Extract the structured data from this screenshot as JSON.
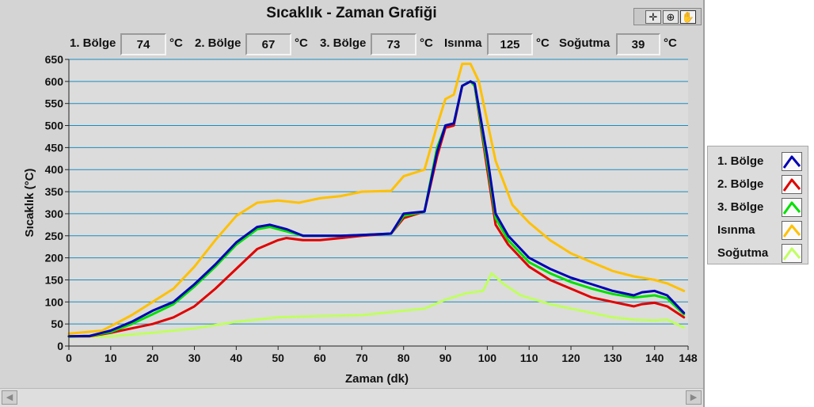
{
  "chart_data": {
    "type": "line",
    "title": "Sıcaklık - Zaman Grafiği",
    "xlabel": "Zaman (dk)",
    "ylabel": "Sıcaklık (°C)",
    "xlim": [
      0,
      148
    ],
    "ylim": [
      0,
      650
    ],
    "x_ticks": [
      0,
      10,
      20,
      30,
      40,
      50,
      60,
      70,
      80,
      90,
      100,
      110,
      120,
      130,
      140,
      148
    ],
    "y_ticks": [
      0,
      50,
      100,
      150,
      200,
      250,
      300,
      350,
      400,
      450,
      500,
      550,
      600,
      650
    ],
    "grid": "horizontal",
    "legend_position": "right",
    "series": [
      {
        "name": "1. Bölge",
        "color": "#0000b4",
        "points": [
          [
            0,
            22
          ],
          [
            5,
            23
          ],
          [
            10,
            35
          ],
          [
            15,
            55
          ],
          [
            20,
            80
          ],
          [
            25,
            100
          ],
          [
            30,
            140
          ],
          [
            35,
            185
          ],
          [
            40,
            235
          ],
          [
            45,
            270
          ],
          [
            48,
            275
          ],
          [
            52,
            265
          ],
          [
            56,
            250
          ],
          [
            60,
            250
          ],
          [
            65,
            250
          ],
          [
            70,
            252
          ],
          [
            77,
            255
          ],
          [
            80,
            300
          ],
          [
            85,
            305
          ],
          [
            88,
            440
          ],
          [
            90,
            500
          ],
          [
            92,
            505
          ],
          [
            94,
            590
          ],
          [
            96,
            600
          ],
          [
            97,
            595
          ],
          [
            100,
            430
          ],
          [
            102,
            300
          ],
          [
            105,
            250
          ],
          [
            110,
            200
          ],
          [
            115,
            175
          ],
          [
            120,
            155
          ],
          [
            125,
            140
          ],
          [
            130,
            125
          ],
          [
            135,
            115
          ],
          [
            137,
            122
          ],
          [
            140,
            125
          ],
          [
            143,
            115
          ],
          [
            147,
            75
          ]
        ]
      },
      {
        "name": "2. Bölge",
        "color": "#e00000",
        "points": [
          [
            0,
            22
          ],
          [
            5,
            22
          ],
          [
            10,
            30
          ],
          [
            15,
            40
          ],
          [
            20,
            50
          ],
          [
            25,
            65
          ],
          [
            30,
            90
          ],
          [
            35,
            130
          ],
          [
            40,
            175
          ],
          [
            45,
            220
          ],
          [
            50,
            240
          ],
          [
            52,
            245
          ],
          [
            56,
            240
          ],
          [
            60,
            240
          ],
          [
            65,
            245
          ],
          [
            70,
            250
          ],
          [
            77,
            255
          ],
          [
            80,
            290
          ],
          [
            85,
            305
          ],
          [
            88,
            430
          ],
          [
            90,
            495
          ],
          [
            92,
            500
          ],
          [
            94,
            590
          ],
          [
            96,
            600
          ],
          [
            97,
            590
          ],
          [
            100,
            400
          ],
          [
            102,
            275
          ],
          [
            105,
            230
          ],
          [
            110,
            180
          ],
          [
            115,
            150
          ],
          [
            120,
            130
          ],
          [
            125,
            110
          ],
          [
            130,
            100
          ],
          [
            135,
            90
          ],
          [
            137,
            95
          ],
          [
            140,
            98
          ],
          [
            143,
            90
          ],
          [
            147,
            65
          ]
        ]
      },
      {
        "name": "3. Bölge",
        "color": "#00e000",
        "points": [
          [
            0,
            22
          ],
          [
            5,
            23
          ],
          [
            10,
            32
          ],
          [
            15,
            50
          ],
          [
            20,
            72
          ],
          [
            25,
            95
          ],
          [
            30,
            135
          ],
          [
            35,
            180
          ],
          [
            40,
            230
          ],
          [
            45,
            265
          ],
          [
            48,
            270
          ],
          [
            52,
            260
          ],
          [
            56,
            250
          ],
          [
            60,
            250
          ],
          [
            65,
            250
          ],
          [
            70,
            252
          ],
          [
            77,
            255
          ],
          [
            80,
            295
          ],
          [
            85,
            305
          ],
          [
            88,
            450
          ],
          [
            90,
            500
          ],
          [
            92,
            505
          ],
          [
            94,
            590
          ],
          [
            96,
            600
          ],
          [
            97,
            590
          ],
          [
            100,
            415
          ],
          [
            102,
            290
          ],
          [
            105,
            240
          ],
          [
            110,
            190
          ],
          [
            115,
            165
          ],
          [
            120,
            145
          ],
          [
            125,
            130
          ],
          [
            130,
            118
          ],
          [
            135,
            110
          ],
          [
            137,
            112
          ],
          [
            140,
            115
          ],
          [
            143,
            108
          ],
          [
            147,
            72
          ]
        ]
      },
      {
        "name": "Isınma",
        "color": "#ffc000",
        "points": [
          [
            0,
            28
          ],
          [
            8,
            35
          ],
          [
            12,
            55
          ],
          [
            15,
            70
          ],
          [
            20,
            100
          ],
          [
            25,
            130
          ],
          [
            30,
            180
          ],
          [
            35,
            240
          ],
          [
            40,
            295
          ],
          [
            45,
            325
          ],
          [
            50,
            330
          ],
          [
            55,
            325
          ],
          [
            60,
            335
          ],
          [
            65,
            340
          ],
          [
            70,
            350
          ],
          [
            77,
            352
          ],
          [
            80,
            385
          ],
          [
            85,
            400
          ],
          [
            88,
            500
          ],
          [
            90,
            560
          ],
          [
            92,
            570
          ],
          [
            94,
            640
          ],
          [
            96,
            640
          ],
          [
            98,
            600
          ],
          [
            102,
            420
          ],
          [
            106,
            320
          ],
          [
            110,
            280
          ],
          [
            115,
            240
          ],
          [
            120,
            210
          ],
          [
            125,
            190
          ],
          [
            130,
            170
          ],
          [
            135,
            158
          ],
          [
            140,
            150
          ],
          [
            143,
            142
          ],
          [
            147,
            125
          ]
        ]
      },
      {
        "name": "Soğutma",
        "color": "#c0ff60",
        "points": [
          [
            0,
            20
          ],
          [
            10,
            22
          ],
          [
            20,
            30
          ],
          [
            30,
            40
          ],
          [
            40,
            55
          ],
          [
            50,
            65
          ],
          [
            60,
            68
          ],
          [
            70,
            70
          ],
          [
            80,
            80
          ],
          [
            85,
            85
          ],
          [
            90,
            105
          ],
          [
            95,
            120
          ],
          [
            99,
            125
          ],
          [
            101,
            165
          ],
          [
            104,
            140
          ],
          [
            108,
            115
          ],
          [
            115,
            95
          ],
          [
            120,
            85
          ],
          [
            125,
            75
          ],
          [
            130,
            65
          ],
          [
            135,
            60
          ],
          [
            140,
            58
          ],
          [
            143,
            60
          ],
          [
            147,
            42
          ]
        ]
      }
    ]
  },
  "readouts": [
    {
      "label": "1. Bölge",
      "value": "74",
      "unit": "°C"
    },
    {
      "label": "2. Bölge",
      "value": "67",
      "unit": "°C"
    },
    {
      "label": "3. Bölge",
      "value": "73",
      "unit": "°C"
    },
    {
      "label": "Isınma",
      "value": "125",
      "unit": "°C"
    },
    {
      "label": "Soğutma",
      "value": "39",
      "unit": "°C"
    }
  ],
  "toolbar": {
    "crosshair_icon": "crosshair-icon",
    "zoom_icon": "zoom-icon",
    "pan_icon": "hand-pan-icon"
  },
  "scrollbar": {
    "left_arrow": "◀",
    "right_arrow": "▶"
  }
}
